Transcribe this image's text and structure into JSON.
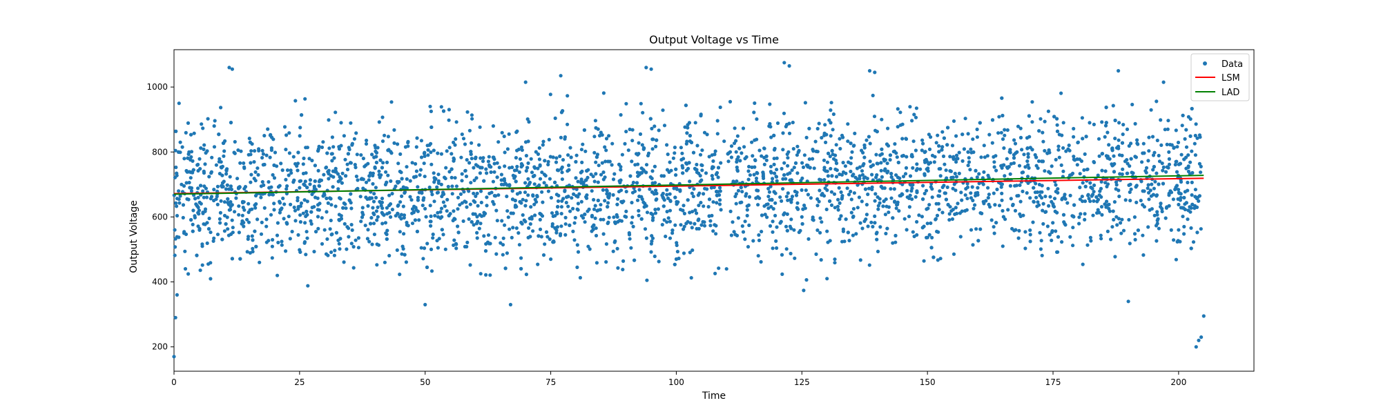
{
  "chart_data": {
    "type": "scatter",
    "title": "Output Voltage vs Time",
    "xlabel": "Time",
    "ylabel": "Output Voltage",
    "xlim": [
      0,
      215
    ],
    "ylim": [
      125,
      1115
    ],
    "xticks": [
      0,
      25,
      50,
      75,
      100,
      125,
      150,
      175,
      200
    ],
    "yticks": [
      200,
      400,
      600,
      800,
      1000
    ],
    "grid": false,
    "legend_position": "top-right",
    "series": [
      {
        "name": "Data",
        "kind": "scatter",
        "color": "#1f77b4",
        "x": [
          0.0,
          0.3,
          0.6,
          1.0,
          1.5,
          2.0,
          3.0,
          5.0,
          8.0,
          11.0,
          11.6,
          14.0,
          17.0,
          20.0,
          25.0,
          30.0,
          35.0,
          40.0,
          45.0,
          50.0,
          55.0,
          60.0,
          65.0,
          67.0,
          70.0,
          75.0,
          77.0,
          80.0,
          85.0,
          90.0,
          94.0,
          95.0,
          100.0,
          105.0,
          110.0,
          115.0,
          121.5,
          122.5,
          125.0,
          130.0,
          135.0,
          138.5,
          139.5,
          145.0,
          150.0,
          155.0,
          160.0,
          165.0,
          170.0,
          175.0,
          180.0,
          185.0,
          188.0,
          190.0,
          195.0,
          197.0,
          200.0,
          202.0,
          203.5,
          204.0,
          204.5,
          205.0
        ],
        "y": [
          170,
          290,
          360,
          950,
          700,
          550,
          800,
          620,
          880,
          1060,
          1055,
          750,
          460,
          720,
          690,
          560,
          650,
          820,
          740,
          330,
          610,
          780,
          520,
          330,
          1015,
          470,
          1035,
          720,
          860,
          600,
          1060,
          1055,
          690,
          760,
          440,
          830,
          1075,
          1065,
          600,
          410,
          800,
          1050,
          1045,
          700,
          580,
          820,
          690,
          510,
          760,
          640,
          830,
          720,
          1050,
          340,
          790,
          1015,
          560,
          740,
          200,
          220,
          230,
          295
        ]
      },
      {
        "name": "LSM",
        "kind": "line",
        "color": "#ff0000",
        "x": [
          0,
          205
        ],
        "y": [
          672,
          719
        ]
      },
      {
        "name": "LAD",
        "kind": "line",
        "color": "#008000",
        "x": [
          0,
          205
        ],
        "y": [
          670,
          728
        ]
      }
    ]
  }
}
